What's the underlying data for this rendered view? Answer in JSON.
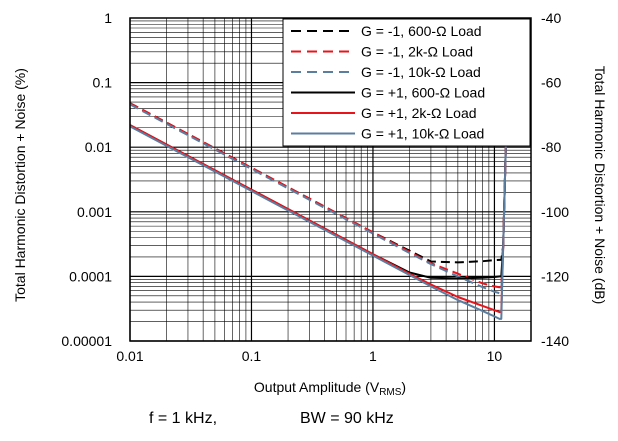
{
  "chart_data": {
    "type": "line",
    "title": "",
    "xlabel": "Output Amplitude (V",
    "xlabel_sub": "RMS",
    "xlabel_end": ")",
    "ylabel": "Total Harmonic Distortion + Noise (%)",
    "y2label": "Total Harmonic Distortion + Noise (dB)",
    "xscale": "log",
    "yscale": "log",
    "xlim": [
      0.01,
      20
    ],
    "ylim": [
      1e-05,
      1
    ],
    "y2lim": [
      -140,
      -40
    ],
    "grid": true,
    "legend_position": "top-right",
    "x_ticks": [
      "0.01",
      "0.1",
      "1",
      "10"
    ],
    "y_ticks": [
      "0.00001",
      "0.0001",
      "0.001",
      "0.01",
      "0.1",
      "1"
    ],
    "y2_ticks": [
      "-140",
      "-120",
      "-100",
      "-80",
      "-60",
      "-40"
    ],
    "series": [
      {
        "name": "G = -1, 600-Ω Load",
        "color": "#000000",
        "dash": true,
        "x": [
          0.01,
          0.1,
          1,
          2,
          3,
          5,
          8,
          10,
          11,
          11.4,
          11.8,
          12.2,
          12.6
        ],
        "y": [
          0.048,
          0.0048,
          0.00048,
          0.00025,
          0.00017,
          0.000165,
          0.000172,
          0.000178,
          0.00018,
          0.00018,
          0.0003,
          0.003,
          0.03
        ]
      },
      {
        "name": "G = -1, 2k-Ω Load",
        "color": "#e8141c",
        "dash": true,
        "x": [
          0.01,
          0.1,
          1,
          2,
          3,
          5,
          8,
          10,
          11,
          11.4,
          11.8,
          12.2,
          12.6
        ],
        "y": [
          0.048,
          0.0048,
          0.00048,
          0.00024,
          0.00016,
          0.00011,
          7.8e-05,
          7e-05,
          6.8e-05,
          7e-05,
          0.0003,
          0.003,
          0.03
        ]
      },
      {
        "name": "G = -1, 10k-Ω Load",
        "color": "#5b7ea0",
        "dash": true,
        "x": [
          0.01,
          0.1,
          1,
          2,
          3,
          5,
          8,
          10,
          11,
          11.4,
          11.8,
          12.2,
          12.6
        ],
        "y": [
          0.046,
          0.0046,
          0.00046,
          0.00023,
          0.000155,
          0.0001,
          6.8e-05,
          5.8e-05,
          5.5e-05,
          5.6e-05,
          0.0003,
          0.003,
          0.03
        ]
      },
      {
        "name": "G = +1, 600-Ω Load",
        "color": "#000000",
        "dash": false,
        "x": [
          0.01,
          0.1,
          1,
          2,
          3,
          5,
          8,
          10,
          11,
          11.4,
          11.8,
          12.2,
          12.6
        ],
        "y": [
          0.022,
          0.0022,
          0.00022,
          0.000115,
          9.5e-05,
          9.3e-05,
          9.5e-05,
          9.8e-05,
          0.0001,
          0.0001,
          0.0003,
          0.003,
          0.03
        ]
      },
      {
        "name": "G = +1, 2k-Ω Load",
        "color": "#e8141c",
        "dash": false,
        "x": [
          0.01,
          0.1,
          1,
          2,
          3,
          5,
          8,
          10,
          11,
          11.4,
          11.8,
          12.2,
          12.6
        ],
        "y": [
          0.022,
          0.0022,
          0.00022,
          0.00011,
          7.5e-05,
          4.8e-05,
          3.5e-05,
          3e-05,
          2.8e-05,
          2.8e-05,
          0.0003,
          0.003,
          0.03
        ]
      },
      {
        "name": "G = +1, 10k-Ω Load",
        "color": "#5b7ea0",
        "dash": false,
        "x": [
          0.01,
          0.1,
          1,
          2,
          3,
          5,
          8,
          10,
          11,
          11.4,
          11.8,
          12.2,
          12.6
        ],
        "y": [
          0.021,
          0.0021,
          0.00021,
          0.000105,
          7e-05,
          4.3e-05,
          2.9e-05,
          2.4e-05,
          2.2e-05,
          2.2e-05,
          0.0003,
          0.003,
          0.03
        ]
      }
    ]
  },
  "footer": {
    "condition_f": "f = 1 kHz,",
    "condition_bw": "BW = 90 kHz"
  }
}
